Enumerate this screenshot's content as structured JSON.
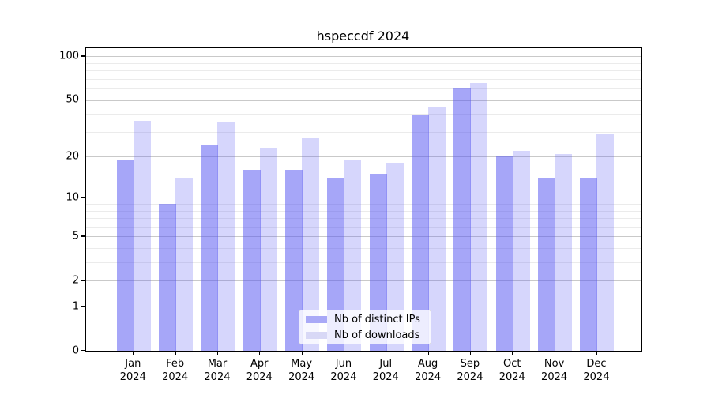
{
  "title": "hspeccdf 2024",
  "chart_data": {
    "type": "bar",
    "title": "hspeccdf 2024",
    "categories": [
      "Jan",
      "Feb",
      "Mar",
      "Apr",
      "May",
      "Jun",
      "Jul",
      "Aug",
      "Sep",
      "Oct",
      "Nov",
      "Dec"
    ],
    "year_label": "2024",
    "series": [
      {
        "name": "Nb of distinct IPs",
        "color": "rgba(85,85,242,0.52)",
        "swatch": "#a9a9f7",
        "values": [
          19,
          9,
          24,
          16,
          16,
          14,
          15,
          39,
          61,
          20,
          14,
          14
        ]
      },
      {
        "name": "Nb of downloads",
        "color": "rgba(85,85,242,0.24)",
        "swatch": "#d8d8f6",
        "values": [
          36,
          14,
          35,
          23,
          27,
          19,
          18,
          45,
          66,
          22,
          21,
          29
        ]
      }
    ],
    "yscale": "log1p",
    "ylim": [
      0,
      113
    ],
    "y_major_ticks": [
      0,
      1,
      2,
      5,
      10,
      20,
      50,
      100
    ],
    "y_minor_gridlines": [
      3,
      4,
      6,
      7,
      8,
      9,
      30,
      40,
      60,
      70,
      80,
      90
    ],
    "grid": true,
    "legend_position": "lower center"
  },
  "colors": {
    "major_grid": "#c9c9c9",
    "minor_grid": "#ebebeb",
    "spine": "#000000",
    "background": "#ffffff"
  }
}
